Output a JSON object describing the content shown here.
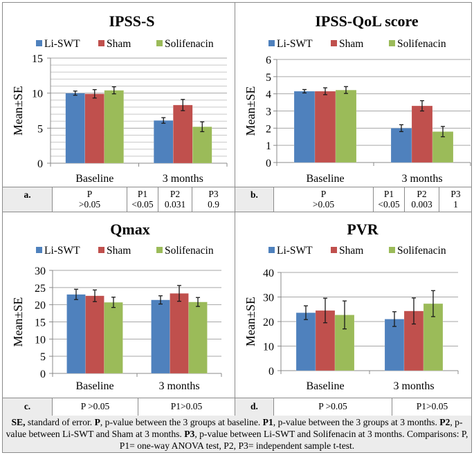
{
  "legend": [
    {
      "name": "Li-SWT",
      "color": "#4f81bd"
    },
    {
      "name": "Sham",
      "color": "#c0504d"
    },
    {
      "name": "Solifenacin",
      "color": "#9bbb59"
    }
  ],
  "chart_data": [
    {
      "id": "a",
      "type": "bar",
      "title": "IPSS-S",
      "ylabel": "Mean±SE",
      "xlabel": "",
      "categories": [
        "Baseline",
        "3 months"
      ],
      "ylim": [
        0,
        15
      ],
      "yticks": [
        0,
        5,
        10,
        15
      ],
      "minor_grid_step": 1,
      "grid": true,
      "legend_position": "top",
      "series": [
        {
          "name": "Li-SWT",
          "values": [
            10.0,
            6.1
          ],
          "errors": [
            0.3,
            0.4
          ]
        },
        {
          "name": "Sham",
          "values": [
            9.9,
            8.3
          ],
          "errors": [
            0.6,
            0.8
          ]
        },
        {
          "name": "Solifenacin",
          "values": [
            10.4,
            5.2
          ],
          "errors": [
            0.5,
            0.7
          ]
        }
      ]
    },
    {
      "id": "b",
      "type": "bar",
      "title": "IPSS-QoL score",
      "ylabel": "Mean±SE",
      "xlabel": "",
      "categories": [
        "Baseline",
        "3 months"
      ],
      "ylim": [
        0,
        6
      ],
      "yticks": [
        0,
        1,
        2,
        3,
        4,
        5,
        6
      ],
      "grid": true,
      "legend_position": "top",
      "series": [
        {
          "name": "Li-SWT",
          "values": [
            4.15,
            2.0
          ],
          "errors": [
            0.1,
            0.2
          ]
        },
        {
          "name": "Sham",
          "values": [
            4.15,
            3.3
          ],
          "errors": [
            0.2,
            0.3
          ]
        },
        {
          "name": "Solifenacin",
          "values": [
            4.22,
            1.8
          ],
          "errors": [
            0.2,
            0.3
          ]
        }
      ]
    },
    {
      "id": "c",
      "type": "bar",
      "title": "Qmax",
      "ylabel": "Mean±SE",
      "xlabel": "",
      "categories": [
        "Baseline",
        "3 months"
      ],
      "ylim": [
        0,
        30
      ],
      "yticks": [
        0,
        5,
        10,
        15,
        20,
        25,
        30
      ],
      "grid": true,
      "legend_position": "top",
      "series": [
        {
          "name": "Li-SWT",
          "values": [
            23.0,
            21.4
          ],
          "errors": [
            1.5,
            1.2
          ]
        },
        {
          "name": "Sham",
          "values": [
            22.6,
            23.3
          ],
          "errors": [
            1.7,
            2.3
          ]
        },
        {
          "name": "Solifenacin",
          "values": [
            20.7,
            20.8
          ],
          "errors": [
            1.5,
            1.3
          ]
        }
      ]
    },
    {
      "id": "d",
      "type": "bar",
      "title": "PVR",
      "ylabel": "Mean±SE",
      "xlabel": "",
      "categories": [
        "Baseline",
        "3 months"
      ],
      "ylim": [
        0,
        40
      ],
      "yticks": [
        0,
        10,
        20,
        30,
        40
      ],
      "grid": true,
      "legend_position": "top",
      "series": [
        {
          "name": "Li-SWT",
          "values": [
            23.6,
            21.0
          ],
          "errors": [
            2.8,
            3.0
          ]
        },
        {
          "name": "Sham",
          "values": [
            24.5,
            24.3
          ],
          "errors": [
            5.0,
            5.3
          ]
        },
        {
          "name": "Solifenacin",
          "values": [
            22.7,
            27.3
          ],
          "errors": [
            5.7,
            5.3
          ]
        }
      ]
    }
  ],
  "tables": {
    "a": {
      "label": "a.",
      "p_head": "P",
      "p_val": ">0.05",
      "p1_head": "P1",
      "p1_val": "<0.05",
      "p2_head": "P2",
      "p2_val": "0.031",
      "p3_head": "P3",
      "p3_val": "0.9"
    },
    "b": {
      "label": "b.",
      "p_head": "P",
      "p_val": ">0.05",
      "p1_head": "P1",
      "p1_val": "<0.05",
      "p2_head": "P2",
      "p2_val": "0.003",
      "p3_head": "P3",
      "p3_val": "1"
    },
    "c": {
      "label": "c.",
      "p": "P >0.05",
      "p1": "P1>0.05"
    },
    "d": {
      "label": "d.",
      "p": "P >0.05",
      "p1": "P1>0.05"
    }
  },
  "footnote": {
    "se_term": "SE,",
    "se_text": " standard of error. ",
    "p_term": "P",
    "p_text": ", p-value between the 3 groups at baseline. ",
    "p1_term": "P1",
    "p1_text": ", p-value between the 3 groups at 3 months. ",
    "p2_term": "P2",
    "p2_text": ", p-value between Li-SWT and Sham at 3 months. ",
    "p3_term": "P3",
    "p3_text": ", p-value between Li-SWT and Solifenacin at 3 months. Comparisons: P, P1= one-way ANOVA test, P2, P3= independent sample t-test."
  }
}
